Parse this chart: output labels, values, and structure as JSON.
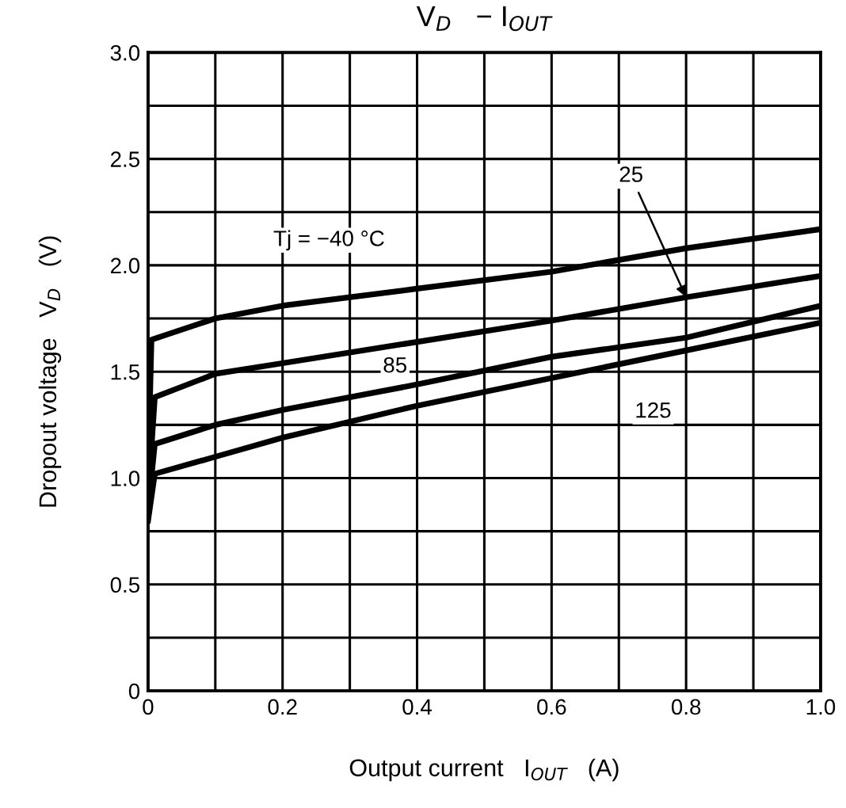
{
  "chart_data": {
    "type": "line",
    "title": "V$_{D}$   − I$_{OUT}$",
    "xlabel": "Output current   I$_{OUT}$   (A)",
    "ylabel": "Dropout voltage   V$_{D}$   (V)",
    "xlim": [
      0,
      1
    ],
    "ylim": [
      0,
      3
    ],
    "xticks": [
      0,
      {
        "value": 0.1,
        "label": null
      },
      0.2,
      {
        "value": 0.3,
        "label": null
      },
      0.4,
      {
        "value": 0.5,
        "label": null
      },
      0.6,
      {
        "value": 0.7,
        "label": null
      },
      0.8,
      {
        "value": 0.9,
        "label": null
      },
      {
        "value": 1,
        "label": "1.0"
      }
    ],
    "yticks": [
      0,
      {
        "value": 0.25,
        "label": null
      },
      0.5,
      {
        "value": 0.75,
        "label": null
      },
      {
        "value": 1,
        "label": "1.0"
      },
      {
        "value": 1.25,
        "label": null
      },
      1.5,
      {
        "value": 1.75,
        "label": null
      },
      {
        "value": 2,
        "label": "2.0"
      },
      {
        "value": 2.25,
        "label": null
      },
      2.5,
      {
        "value": 2.75,
        "label": null
      },
      {
        "value": 3,
        "label": "3.0"
      }
    ],
    "grid": true,
    "marker": "none",
    "line_style": "solid",
    "series": [
      {
        "name": "Tj = −40 °C",
        "color": "#000000",
        "x": [
          0,
          0.005,
          0.1,
          0.2,
          0.4,
          0.6,
          0.8,
          1.0
        ],
        "values": [
          1.0,
          1.65,
          1.75,
          1.81,
          1.89,
          1.97,
          2.08,
          2.17
        ]
      },
      {
        "name": "25",
        "color": "#000000",
        "x": [
          0,
          0.01,
          0.1,
          0.2,
          0.4,
          0.6,
          0.8,
          1.0
        ],
        "values": [
          0.9,
          1.38,
          1.49,
          1.54,
          1.64,
          1.74,
          1.85,
          1.95
        ]
      },
      {
        "name": "85",
        "color": "#000000",
        "x": [
          0,
          0.01,
          0.1,
          0.2,
          0.4,
          0.6,
          0.8,
          1.0
        ],
        "values": [
          0.85,
          1.16,
          1.25,
          1.32,
          1.44,
          1.57,
          1.66,
          1.81
        ]
      },
      {
        "name": "125",
        "color": "#000000",
        "x": [
          0,
          0.01,
          0.1,
          0.2,
          0.4,
          0.6,
          0.8,
          1.0
        ],
        "values": [
          0.8,
          1.02,
          1.1,
          1.19,
          1.34,
          1.47,
          1.6,
          1.73
        ]
      }
    ]
  }
}
